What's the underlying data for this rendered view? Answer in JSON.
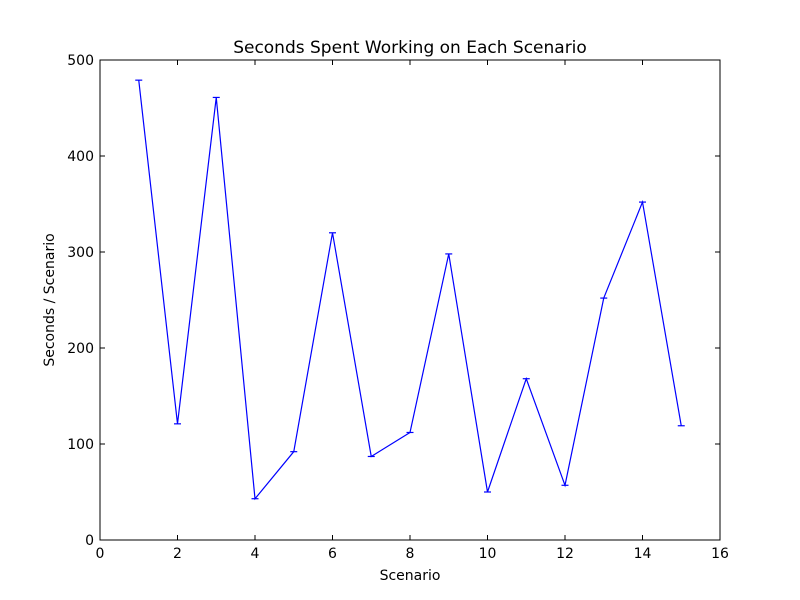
{
  "chart_data": {
    "type": "line",
    "title": "Seconds Spent Working on Each Scenario",
    "xlabel": "Scenario",
    "ylabel": "Seconds / Scenario",
    "xlim": [
      0,
      16
    ],
    "ylim": [
      0,
      500
    ],
    "xticks": [
      0,
      2,
      4,
      6,
      8,
      10,
      12,
      14,
      16
    ],
    "yticks": [
      0,
      100,
      200,
      300,
      400,
      500
    ],
    "grid": false,
    "line_color": "#0000ff",
    "error_bars": true,
    "series": [
      {
        "x": [
          1,
          2,
          3,
          4,
          5,
          6,
          7,
          8,
          9,
          10,
          11,
          12,
          13,
          14,
          15
        ],
        "values": [
          479,
          121,
          461,
          43,
          92,
          320,
          87,
          112,
          298,
          50,
          168,
          57,
          252,
          352,
          119
        ]
      }
    ]
  }
}
